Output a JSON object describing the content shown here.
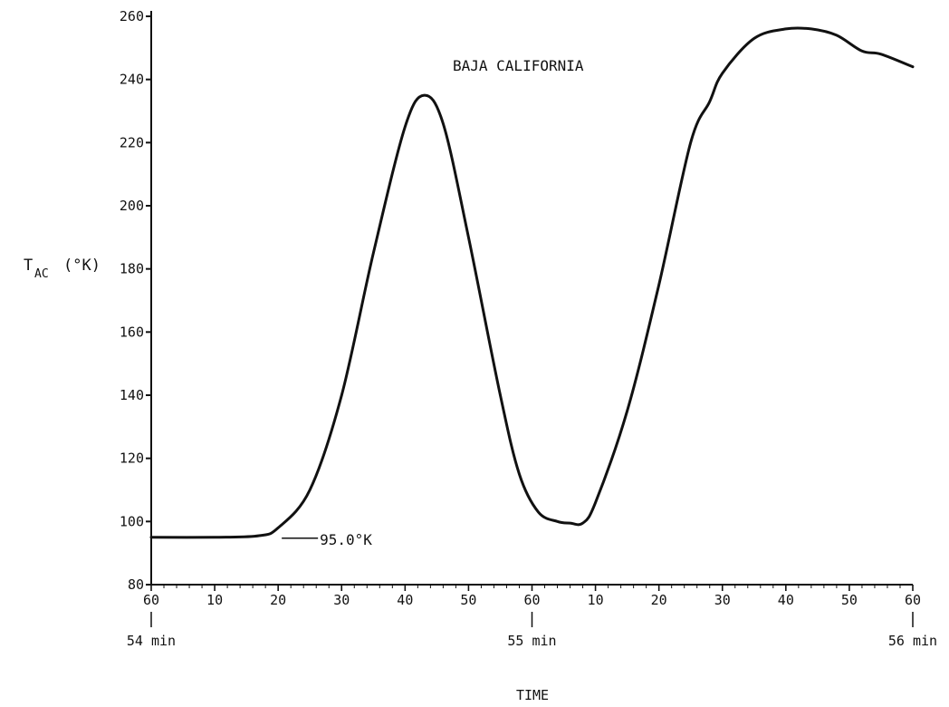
{
  "chart_data": {
    "type": "line",
    "title": "BAJA CALIFORNIA",
    "xlabel": "TIME",
    "ylabel": {
      "main": "T",
      "subscript": "AC",
      "unit": "(°K)"
    },
    "ylim": [
      80,
      260
    ],
    "y_ticks": [
      80,
      100,
      120,
      140,
      160,
      180,
      200,
      220,
      240,
      260
    ],
    "x_unit": "seconds from 54 min",
    "xlim": [
      0,
      120
    ],
    "x_tick_values": [
      0,
      10,
      20,
      30,
      40,
      50,
      60,
      70,
      80,
      90,
      100,
      110,
      120
    ],
    "x_tick_labels": [
      "60",
      "10",
      "20",
      "30",
      "40",
      "50",
      "60",
      "10",
      "20",
      "30",
      "40",
      "50",
      "60"
    ],
    "minute_markers": [
      {
        "x": 0,
        "label": "54 min"
      },
      {
        "x": 60,
        "label": "55 min"
      },
      {
        "x": 120,
        "label": "56 min"
      }
    ],
    "grid": false,
    "series": [
      {
        "color": "#111111",
        "x": [
          0,
          10,
          17,
          20,
          25,
          30,
          35,
          40,
          43,
          46,
          50,
          55,
          58,
          61,
          64,
          66,
          68,
          70,
          75,
          80,
          85,
          88,
          90,
          95,
          100,
          104,
          108,
          112,
          115,
          120
        ],
        "y": [
          95,
          95,
          95.5,
          98,
          110,
          140,
          185,
          225,
          235,
          226,
          190,
          140,
          115,
          103,
          100,
          99.5,
          99.5,
          106,
          135,
          175,
          220,
          233,
          242,
          253,
          256,
          256,
          254,
          249,
          248,
          244
        ]
      }
    ],
    "annotations": [
      {
        "text": "95.0°K",
        "x": 18,
        "y": 95
      }
    ]
  }
}
